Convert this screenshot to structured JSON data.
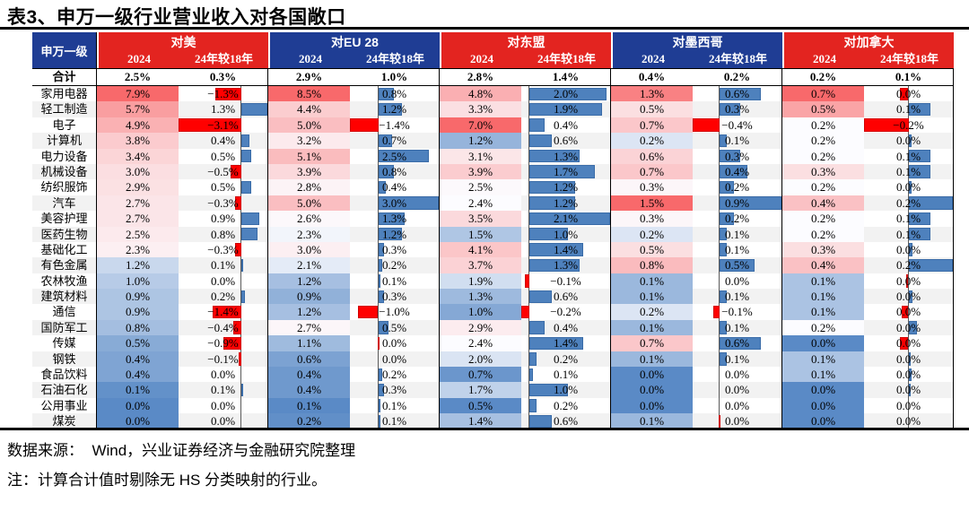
{
  "title": "表3、申万一级行业营业收入对各国敞口",
  "footer": {
    "source": "数据来源：  Wind，兴业证券经济与金融研究院整理",
    "note": "注：计算合计值时剔除无 HS 分类映射的行业。"
  },
  "colors": {
    "group_red": "#E32420",
    "group_navy": "#1F3D94",
    "heat_red": "#F8696B",
    "heat_mid": "#FCFCFF",
    "heat_blue": "#5A8AC6",
    "bar_pos_fill": "#4E81BD",
    "bar_pos_border": "#3A6CA8",
    "bar_neg_fill": "#FF0000",
    "bar_neg_border": "#D00000",
    "stripe": "#F2F2F2",
    "axis": "#5A5A5A"
  },
  "chart_data": {
    "type": "table",
    "title": "表3、申万一级行业营业收入对各国敞口",
    "row_header": "申万一级",
    "sub_columns": [
      "2024",
      "24年较18年"
    ],
    "groups": [
      {
        "label": "对美",
        "color_key": "red"
      },
      {
        "label": "对EU 28",
        "color_key": "navy"
      },
      {
        "label": "对东盟",
        "color_key": "red"
      },
      {
        "label": "对墨西哥",
        "color_key": "navy"
      },
      {
        "label": "对加拿大",
        "color_key": "red"
      }
    ],
    "total_row": {
      "label": "合计",
      "cells": [
        [
          "2.5%",
          "0.3%"
        ],
        [
          "2.9%",
          "1.0%"
        ],
        [
          "2.8%",
          "1.4%"
        ],
        [
          "0.4%",
          "0.2%"
        ],
        [
          "0.2%",
          "0.1%"
        ]
      ]
    },
    "rows": [
      {
        "label": "家用电器",
        "cells": [
          [
            "7.9%",
            "-1.3%"
          ],
          [
            "8.5%",
            "0.8%"
          ],
          [
            "4.8%",
            "2.0%"
          ],
          [
            "1.3%",
            "0.6%"
          ],
          [
            "0.7%",
            "0.0%",
            -0.04
          ]
        ]
      },
      {
        "label": "轻工制造",
        "cells": [
          [
            "5.7%",
            "1.3%"
          ],
          [
            "4.4%",
            "1.2%"
          ],
          [
            "3.3%",
            "1.9%"
          ],
          [
            "0.5%",
            "0.3%"
          ],
          [
            "0.5%",
            "0.1%"
          ]
        ]
      },
      {
        "label": "电子",
        "cells": [
          [
            "4.9%",
            "-3.1%"
          ],
          [
            "5.0%",
            "-1.4%"
          ],
          [
            "7.0%",
            "0.4%"
          ],
          [
            "0.7%",
            "-0.4%"
          ],
          [
            "0.2%",
            "-0.2%"
          ]
        ]
      },
      {
        "label": "计算机",
        "cells": [
          [
            "3.8%",
            "0.4%"
          ],
          [
            "3.2%",
            "0.7%"
          ],
          [
            "1.2%",
            "0.6%"
          ],
          [
            "0.2%",
            "0.1%"
          ],
          [
            "0.2%",
            "0.0%",
            0.015
          ]
        ]
      },
      {
        "label": "电力设备",
        "cells": [
          [
            "3.4%",
            "0.5%"
          ],
          [
            "5.1%",
            "2.5%"
          ],
          [
            "3.1%",
            "1.3%"
          ],
          [
            "0.6%",
            "0.3%"
          ],
          [
            "0.2%",
            "0.1%"
          ]
        ]
      },
      {
        "label": "机械设备",
        "cells": [
          [
            "3.0%",
            "-0.5%"
          ],
          [
            "3.9%",
            "0.8%"
          ],
          [
            "3.9%",
            "1.7%"
          ],
          [
            "0.7%",
            "0.4%"
          ],
          [
            "0.3%",
            "0.1%"
          ]
        ]
      },
      {
        "label": "纺织服饰",
        "cells": [
          [
            "2.9%",
            "0.5%"
          ],
          [
            "2.8%",
            "0.4%"
          ],
          [
            "2.5%",
            "1.2%"
          ],
          [
            "0.3%",
            "0.2%"
          ],
          [
            "0.2%",
            "0.0%",
            0.015
          ]
        ]
      },
      {
        "label": "汽车",
        "cells": [
          [
            "2.7%",
            "-0.3%"
          ],
          [
            "5.0%",
            "3.0%"
          ],
          [
            "2.4%",
            "1.2%"
          ],
          [
            "1.5%",
            "0.9%"
          ],
          [
            "0.4%",
            "0.2%"
          ]
        ]
      },
      {
        "label": "美容护理",
        "cells": [
          [
            "2.7%",
            "0.9%"
          ],
          [
            "2.6%",
            "1.3%"
          ],
          [
            "3.5%",
            "2.1%"
          ],
          [
            "0.3%",
            "0.2%"
          ],
          [
            "0.2%",
            "0.1%"
          ]
        ]
      },
      {
        "label": "医药生物",
        "cells": [
          [
            "2.5%",
            "0.8%"
          ],
          [
            "2.3%",
            "1.2%"
          ],
          [
            "1.5%",
            "1.0%"
          ],
          [
            "0.2%",
            "0.1%"
          ],
          [
            "0.2%",
            "0.1%"
          ]
        ]
      },
      {
        "label": "基础化工",
        "cells": [
          [
            "2.3%",
            "-0.3%"
          ],
          [
            "3.0%",
            "0.3%"
          ],
          [
            "4.1%",
            "1.4%"
          ],
          [
            "0.5%",
            "0.1%"
          ],
          [
            "0.3%",
            "0.0%",
            0.02
          ]
        ]
      },
      {
        "label": "有色金属",
        "cells": [
          [
            "1.2%",
            "0.1%"
          ],
          [
            "2.1%",
            "0.2%"
          ],
          [
            "3.7%",
            "1.3%"
          ],
          [
            "0.8%",
            "0.5%"
          ],
          [
            "0.4%",
            "0.2%"
          ]
        ]
      },
      {
        "label": "农林牧渔",
        "cells": [
          [
            "1.0%",
            "0.0%"
          ],
          [
            "1.2%",
            "0.1%"
          ],
          [
            "1.9%",
            "-0.1%"
          ],
          [
            "0.1%",
            "0.0%"
          ],
          [
            "0.1%",
            "0.0%",
            -0.01
          ]
        ]
      },
      {
        "label": "建筑材料",
        "cells": [
          [
            "0.9%",
            "0.2%"
          ],
          [
            "0.9%",
            "0.3%"
          ],
          [
            "1.3%",
            "0.6%"
          ],
          [
            "0.1%",
            "0.1%"
          ],
          [
            "0.1%",
            "0.0%",
            0.02
          ]
        ]
      },
      {
        "label": "通信",
        "cells": [
          [
            "0.9%",
            "-1.4%"
          ],
          [
            "1.2%",
            "-1.0%"
          ],
          [
            "1.0%",
            "-0.2%"
          ],
          [
            "0.2%",
            "-0.1%"
          ],
          [
            "0.1%",
            "0.0%",
            -0.03
          ]
        ]
      },
      {
        "label": "国防军工",
        "cells": [
          [
            "0.8%",
            "-0.4%"
          ],
          [
            "2.7%",
            "0.5%"
          ],
          [
            "2.9%",
            "0.4%"
          ],
          [
            "0.1%",
            "0.1%"
          ],
          [
            "0.2%",
            "0.0%",
            0.04
          ]
        ]
      },
      {
        "label": "传媒",
        "cells": [
          [
            "0.5%",
            "-0.9%"
          ],
          [
            "1.1%",
            "0.0%",
            -0.02
          ],
          [
            "2.4%",
            "1.4%"
          ],
          [
            "0.7%",
            "0.6%"
          ],
          [
            "0.0%",
            "0.0%",
            -0.04
          ]
        ]
      },
      {
        "label": "钢铁",
        "cells": [
          [
            "0.4%",
            "-0.1%"
          ],
          [
            "0.6%",
            "0.0%"
          ],
          [
            "2.0%",
            "0.2%"
          ],
          [
            "0.1%",
            "0.1%"
          ],
          [
            "0.1%",
            "0.0%",
            0.01
          ]
        ]
      },
      {
        "label": "食品饮料",
        "cells": [
          [
            "0.4%",
            "0.0%"
          ],
          [
            "0.4%",
            "0.2%"
          ],
          [
            "0.7%",
            "0.1%"
          ],
          [
            "0.0%",
            "0.0%"
          ],
          [
            "0.1%",
            "0.0%",
            0.015
          ]
        ]
      },
      {
        "label": "石油石化",
        "cells": [
          [
            "0.1%",
            "0.1%"
          ],
          [
            "0.4%",
            "0.3%"
          ],
          [
            "1.7%",
            "1.0%"
          ],
          [
            "0.0%",
            "0.0%"
          ],
          [
            "0.0%",
            "0.0%",
            0.01
          ]
        ]
      },
      {
        "label": "公用事业",
        "cells": [
          [
            "0.0%",
            "0.0%"
          ],
          [
            "0.1%",
            "0.1%"
          ],
          [
            "0.5%",
            "0.2%"
          ],
          [
            "0.0%",
            "0.0%"
          ],
          [
            "0.0%",
            "0.0%"
          ]
        ]
      },
      {
        "label": "煤炭",
        "cells": [
          [
            "0.0%",
            "0.0%"
          ],
          [
            "0.2%",
            "0.1%"
          ],
          [
            "1.4%",
            "0.6%"
          ],
          [
            "0.1%",
            "0.0%",
            -0.02
          ],
          [
            "0.0%",
            "0.0%"
          ]
        ]
      }
    ]
  }
}
